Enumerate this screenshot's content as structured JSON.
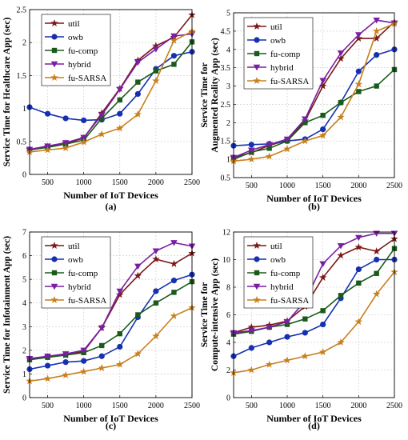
{
  "colors": {
    "util": "#7b1818",
    "owb": "#1530b0",
    "fu-comp": "#1a5a1a",
    "hybrid": "#7a1fa3",
    "fu-SARSA": "#c8801c"
  },
  "markers": {
    "util": "star",
    "owb": "circle",
    "fu-comp": "square",
    "hybrid": "triangle-down",
    "fu-SARSA": "star"
  },
  "chart_data": [
    {
      "type": "line",
      "panel_label": "(a)",
      "xlabel": "Number of IoT Devices",
      "ylabel": "Service Time for Healthcare App (sec)",
      "xlim": [
        250,
        2500
      ],
      "ylim": [
        0,
        2.5
      ],
      "xticks": [
        500,
        1000,
        1500,
        2000,
        2500
      ],
      "yticks": [
        0,
        0.5,
        1,
        1.5,
        2,
        2.5
      ],
      "ytick_labels": [
        "0",
        "0.5",
        "1",
        "1.5",
        "2",
        "2.5"
      ],
      "grid": true,
      "legend": "top-left",
      "x": [
        250,
        500,
        750,
        1000,
        1250,
        1500,
        1750,
        2000,
        2250,
        2500
      ],
      "series": [
        {
          "name": "util",
          "values": [
            0.38,
            0.42,
            0.47,
            0.55,
            0.93,
            1.3,
            1.73,
            1.95,
            2.08,
            2.42
          ]
        },
        {
          "name": "owb",
          "values": [
            1.02,
            0.92,
            0.85,
            0.82,
            0.83,
            0.92,
            1.22,
            1.6,
            1.8,
            1.86
          ]
        },
        {
          "name": "fu-comp",
          "values": [
            0.37,
            0.41,
            0.46,
            0.52,
            0.85,
            1.13,
            1.4,
            1.57,
            1.67,
            2.01
          ]
        },
        {
          "name": "hybrid",
          "values": [
            0.38,
            0.43,
            0.48,
            0.56,
            0.9,
            1.29,
            1.7,
            1.9,
            2.1,
            2.13
          ]
        },
        {
          "name": "fu-SARSA",
          "values": [
            0.34,
            0.37,
            0.4,
            0.49,
            0.61,
            0.7,
            0.91,
            1.42,
            2.03,
            2.17
          ]
        }
      ]
    },
    {
      "type": "line",
      "panel_label": "(b)",
      "xlabel": "Number of IoT Devices",
      "ylabel": "Service Time for Augmented Reality App (sec)",
      "xlim": [
        250,
        2500
      ],
      "ylim": [
        0.5,
        5
      ],
      "xticks": [
        500,
        1000,
        1500,
        2000,
        2500
      ],
      "yticks": [
        0.5,
        1,
        1.5,
        2,
        2.5,
        3,
        3.5,
        4,
        4.5,
        5
      ],
      "ytick_labels": [
        "0.5",
        "1",
        "1.5",
        "2",
        "2.5",
        "3",
        "3.5",
        "4",
        "4.5",
        "5"
      ],
      "grid": true,
      "legend": "top-left",
      "x": [
        250,
        500,
        750,
        1000,
        1250,
        1500,
        1750,
        2000,
        2250,
        2500
      ],
      "series": [
        {
          "name": "util",
          "values": [
            1.05,
            1.18,
            1.38,
            1.52,
            2.05,
            3.0,
            3.75,
            4.3,
            4.3,
            4.75
          ]
        },
        {
          "name": "owb",
          "values": [
            1.37,
            1.4,
            1.42,
            1.5,
            1.55,
            1.82,
            2.55,
            3.4,
            3.85,
            4.0
          ]
        },
        {
          "name": "fu-comp",
          "values": [
            1.0,
            1.2,
            1.3,
            1.5,
            2.0,
            2.2,
            2.55,
            2.85,
            3.0,
            3.45
          ]
        },
        {
          "name": "hybrid",
          "values": [
            1.05,
            1.25,
            1.4,
            1.55,
            2.1,
            3.15,
            3.9,
            4.4,
            4.8,
            4.72
          ]
        },
        {
          "name": "fu-SARSA",
          "values": [
            0.95,
            1.0,
            1.08,
            1.28,
            1.5,
            1.65,
            2.15,
            3.05,
            4.5,
            4.7
          ]
        }
      ]
    },
    {
      "type": "line",
      "panel_label": "(c)",
      "xlabel": "Number of IoT Devices",
      "ylabel": "Service Time for Infotainment App (sec)",
      "xlim": [
        250,
        2500
      ],
      "ylim": [
        0,
        7
      ],
      "xticks": [
        500,
        1000,
        1500,
        2000,
        2500
      ],
      "yticks": [
        0,
        1,
        2,
        3,
        4,
        5,
        6,
        7
      ],
      "ytick_labels": [
        "0",
        "1",
        "2",
        "3",
        "4",
        "5",
        "6",
        "7"
      ],
      "grid": true,
      "legend": "top-left",
      "x": [
        250,
        500,
        750,
        1000,
        1250,
        1500,
        1750,
        2000,
        2250,
        2500
      ],
      "series": [
        {
          "name": "util",
          "values": [
            1.65,
            1.72,
            1.8,
            1.95,
            2.95,
            4.35,
            5.15,
            5.85,
            5.65,
            6.1
          ]
        },
        {
          "name": "owb",
          "values": [
            1.2,
            1.35,
            1.5,
            1.55,
            1.75,
            2.15,
            3.4,
            4.5,
            4.95,
            5.2
          ]
        },
        {
          "name": "fu-comp",
          "values": [
            1.6,
            1.7,
            1.8,
            1.9,
            2.2,
            2.7,
            3.5,
            4.0,
            4.45,
            4.9
          ]
        },
        {
          "name": "hybrid",
          "values": [
            1.65,
            1.75,
            1.85,
            2.0,
            2.95,
            4.5,
            5.55,
            6.2,
            6.55,
            6.4
          ]
        },
        {
          "name": "fu-SARSA",
          "values": [
            0.7,
            0.8,
            0.95,
            1.1,
            1.25,
            1.4,
            1.85,
            2.6,
            3.45,
            3.8
          ]
        }
      ]
    },
    {
      "type": "line",
      "panel_label": "(d)",
      "xlabel": "Number of IoT Devices",
      "ylabel": "Service Time for Compute-intensive App (sec)",
      "xlim": [
        250,
        2500
      ],
      "ylim": [
        0,
        12
      ],
      "xticks": [
        500,
        1000,
        1500,
        2000,
        2500
      ],
      "yticks": [
        0,
        2,
        4,
        6,
        8,
        10,
        12
      ],
      "ytick_labels": [
        "0",
        "2",
        "4",
        "6",
        "8",
        "10",
        "12"
      ],
      "grid": true,
      "legend": "top-left",
      "x": [
        250,
        500,
        750,
        1000,
        1250,
        1500,
        1750,
        2000,
        2250,
        2500
      ],
      "series": [
        {
          "name": "util",
          "values": [
            4.7,
            5.1,
            5.25,
            5.55,
            6.6,
            8.7,
            10.3,
            10.9,
            10.6,
            11.5
          ]
        },
        {
          "name": "owb",
          "values": [
            3.0,
            3.6,
            4.0,
            4.4,
            4.7,
            5.3,
            7.2,
            9.3,
            10.0,
            10.0
          ]
        },
        {
          "name": "fu-comp",
          "values": [
            4.6,
            4.8,
            5.1,
            5.3,
            5.7,
            6.3,
            7.4,
            8.3,
            9.0,
            10.8
          ]
        },
        {
          "name": "hybrid",
          "values": [
            4.7,
            4.85,
            5.1,
            5.5,
            7.0,
            9.7,
            11.0,
            11.6,
            11.9,
            11.9
          ]
        },
        {
          "name": "fu-SARSA",
          "values": [
            1.8,
            2.0,
            2.4,
            2.7,
            3.0,
            3.3,
            4.0,
            5.5,
            7.5,
            9.1
          ]
        }
      ]
    }
  ]
}
